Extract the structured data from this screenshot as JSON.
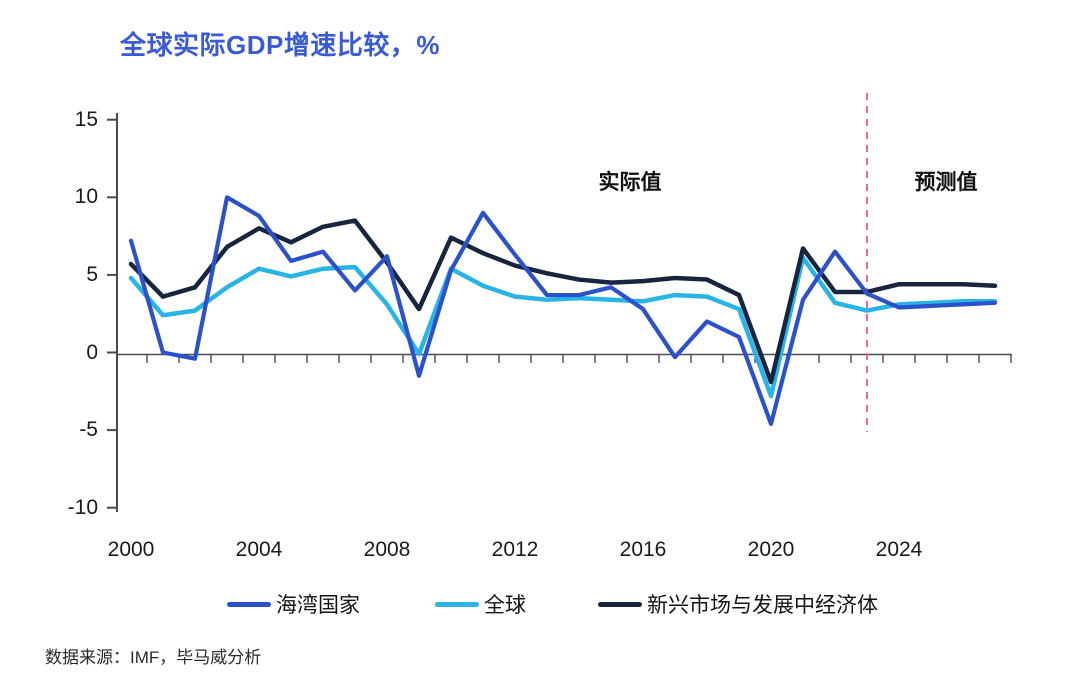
{
  "title": "全球实际GDP增速比较，%",
  "annotations": {
    "actual": "实际值",
    "forecast": "预测值"
  },
  "source": "数据来源：IMF，毕马威分析",
  "colors": {
    "title": "#3A5BD5",
    "gulf": "#2B52CB",
    "world": "#29B4E6",
    "emde": "#18253E",
    "forecast_divider": "#F2679C",
    "axis_line": "#4A4A4A",
    "tick": "#4D4D4D",
    "label_text": "#1A1A1A"
  },
  "chart_data": {
    "type": "line",
    "title": "全球实际GDP增速比较，%",
    "x": [
      2000,
      2001,
      2002,
      2003,
      2004,
      2005,
      2006,
      2007,
      2008,
      2009,
      2010,
      2011,
      2012,
      2013,
      2014,
      2015,
      2016,
      2017,
      2018,
      2019,
      2020,
      2021,
      2022,
      2023,
      2024,
      2025,
      2026,
      2027
    ],
    "series": [
      {
        "key": "gulf",
        "name": "海湾国家",
        "color": "#2B52CB",
        "values": [
          7.2,
          0.0,
          -0.4,
          10.0,
          8.8,
          5.9,
          6.5,
          4.0,
          6.2,
          -1.5,
          5.3,
          9.0,
          6.3,
          3.7,
          3.7,
          4.2,
          2.8,
          -0.3,
          2.0,
          1.0,
          -4.6,
          3.4,
          6.5,
          3.8,
          2.9,
          3.0,
          3.1,
          3.2
        ]
      },
      {
        "key": "world",
        "name": "全球",
        "color": "#29B4E6",
        "values": [
          4.8,
          2.4,
          2.7,
          4.2,
          5.4,
          4.9,
          5.4,
          5.5,
          3.1,
          -0.1,
          5.4,
          4.3,
          3.6,
          3.4,
          3.5,
          3.4,
          3.3,
          3.7,
          3.6,
          2.8,
          -2.8,
          6.1,
          3.2,
          2.7,
          3.1,
          3.2,
          3.3,
          3.3
        ]
      },
      {
        "key": "emde",
        "name": "新兴市场与发展中经济体",
        "color": "#18253E",
        "values": [
          5.7,
          3.6,
          4.2,
          6.8,
          8.0,
          7.1,
          8.1,
          8.5,
          5.8,
          2.8,
          7.4,
          6.4,
          5.6,
          5.1,
          4.7,
          4.5,
          4.6,
          4.8,
          4.7,
          3.7,
          -1.9,
          6.7,
          3.9,
          3.9,
          4.4,
          4.4,
          4.4,
          4.3
        ]
      }
    ],
    "ylim": [
      -10,
      15
    ],
    "yticks": [
      "15",
      "10",
      "5",
      "0",
      "-5",
      "-10"
    ],
    "ytick_values": [
      15,
      10,
      5,
      0,
      -5,
      -10
    ],
    "xtick_labels": [
      "2000",
      "2004",
      "2008",
      "2012",
      "2016",
      "2020",
      "2024"
    ],
    "xtick_label_values": [
      2000,
      2004,
      2008,
      2012,
      2016,
      2020,
      2024
    ],
    "forecast_divider_year": 2023,
    "grid": false,
    "legend_position": "bottom"
  }
}
